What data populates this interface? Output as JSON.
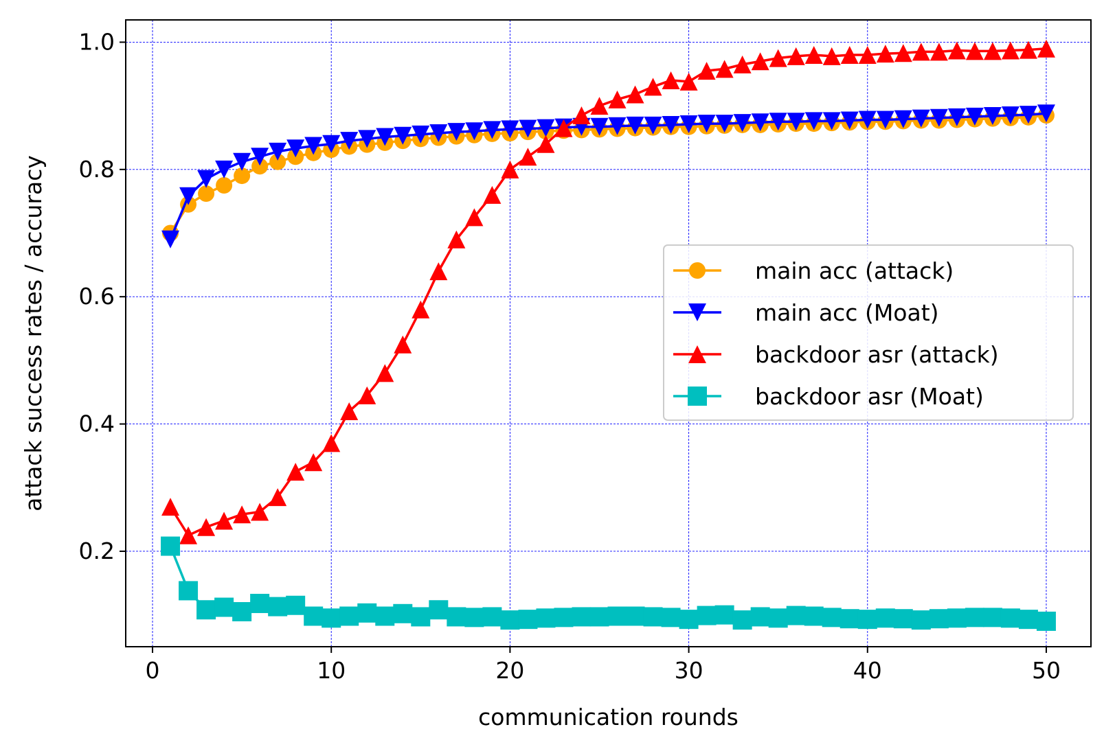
{
  "chart_data": {
    "type": "line",
    "title": "",
    "xlabel": "communication rounds",
    "ylabel": "attack success rates / accuracy",
    "xlim": [
      -1.5,
      52.5
    ],
    "ylim": [
      0.05,
      1.035
    ],
    "xticks": [
      0,
      10,
      20,
      30,
      40,
      50
    ],
    "yticks": [
      0.2,
      0.4,
      0.6,
      0.8,
      1.0
    ],
    "xtick_labels": [
      "0",
      "10",
      "20",
      "30",
      "40",
      "50"
    ],
    "ytick_labels": [
      "0.2",
      "0.4",
      "0.6",
      "0.8",
      "1.0"
    ],
    "grid": true,
    "grid_color": "#0000ff",
    "legend_position": "center-right",
    "x": [
      1,
      2,
      3,
      4,
      5,
      6,
      7,
      8,
      9,
      10,
      11,
      12,
      13,
      14,
      15,
      16,
      17,
      18,
      19,
      20,
      21,
      22,
      23,
      24,
      25,
      26,
      27,
      28,
      29,
      30,
      31,
      32,
      33,
      34,
      35,
      36,
      37,
      38,
      39,
      40,
      41,
      42,
      43,
      44,
      45,
      46,
      47,
      48,
      49,
      50
    ],
    "series": [
      {
        "name": "main acc (attack)",
        "color": "#ffa500",
        "marker": "circle",
        "values": [
          0.7,
          0.745,
          0.762,
          0.775,
          0.79,
          0.805,
          0.812,
          0.82,
          0.826,
          0.831,
          0.836,
          0.839,
          0.842,
          0.845,
          0.848,
          0.85,
          0.852,
          0.854,
          0.856,
          0.857,
          0.859,
          0.86,
          0.861,
          0.862,
          0.863,
          0.864,
          0.865,
          0.866,
          0.867,
          0.867,
          0.868,
          0.869,
          0.87,
          0.87,
          0.871,
          0.872,
          0.872,
          0.873,
          0.874,
          0.875,
          0.875,
          0.876,
          0.877,
          0.877,
          0.878,
          0.879,
          0.88,
          0.881,
          0.882,
          0.885
        ]
      },
      {
        "name": "main acc (Moat)",
        "color": "#0000ff",
        "marker": "triangle-down",
        "values": [
          0.69,
          0.758,
          0.785,
          0.8,
          0.812,
          0.82,
          0.828,
          0.833,
          0.837,
          0.84,
          0.845,
          0.848,
          0.851,
          0.853,
          0.855,
          0.857,
          0.859,
          0.86,
          0.862,
          0.863,
          0.864,
          0.865,
          0.866,
          0.867,
          0.867,
          0.868,
          0.869,
          0.869,
          0.87,
          0.871,
          0.872,
          0.872,
          0.873,
          0.874,
          0.875,
          0.875,
          0.876,
          0.876,
          0.877,
          0.878,
          0.878,
          0.879,
          0.88,
          0.881,
          0.882,
          0.883,
          0.884,
          0.885,
          0.886,
          0.888
        ]
      },
      {
        "name": "backdoor asr (attack)",
        "color": "#ff0000",
        "marker": "triangle-up",
        "values": [
          0.27,
          0.225,
          0.238,
          0.248,
          0.258,
          0.262,
          0.285,
          0.325,
          0.34,
          0.37,
          0.42,
          0.445,
          0.48,
          0.525,
          0.58,
          0.64,
          0.69,
          0.725,
          0.76,
          0.8,
          0.82,
          0.84,
          0.865,
          0.885,
          0.9,
          0.91,
          0.918,
          0.93,
          0.94,
          0.938,
          0.955,
          0.958,
          0.965,
          0.97,
          0.975,
          0.978,
          0.98,
          0.978,
          0.98,
          0.98,
          0.982,
          0.983,
          0.985,
          0.985,
          0.987,
          0.986,
          0.986,
          0.987,
          0.988,
          0.99
        ]
      },
      {
        "name": "backdoor asr (Moat)",
        "color": "#00bfbf",
        "marker": "square",
        "values": [
          0.208,
          0.138,
          0.108,
          0.112,
          0.105,
          0.118,
          0.113,
          0.115,
          0.098,
          0.095,
          0.098,
          0.103,
          0.098,
          0.102,
          0.097,
          0.108,
          0.097,
          0.096,
          0.097,
          0.092,
          0.093,
          0.095,
          0.096,
          0.097,
          0.097,
          0.098,
          0.098,
          0.097,
          0.096,
          0.093,
          0.099,
          0.1,
          0.092,
          0.097,
          0.095,
          0.099,
          0.098,
          0.096,
          0.094,
          0.093,
          0.095,
          0.094,
          0.092,
          0.094,
          0.095,
          0.096,
          0.096,
          0.095,
          0.093,
          0.09
        ]
      }
    ]
  }
}
